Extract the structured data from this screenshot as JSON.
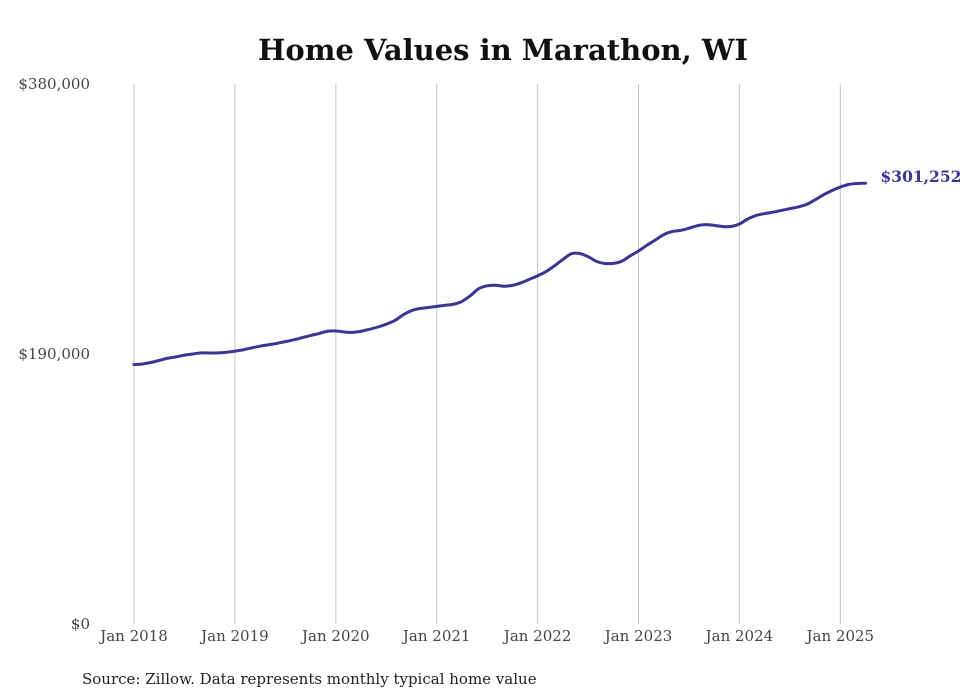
{
  "chart_data": {
    "type": "line",
    "title": "Home Values in Marathon, WI",
    "xlabel": "",
    "ylabel": "",
    "x_tick_labels": [
      "Jan 2018",
      "Jan 2019",
      "Jan 2020",
      "Jan 2021",
      "Jan 2022",
      "Jan 2023",
      "Jan 2024",
      "Jan 2025"
    ],
    "y_tick_labels": [
      "$0",
      "$190,000",
      "$380,000"
    ],
    "y_ticks": [
      0,
      190000,
      380000
    ],
    "ylim": [
      0,
      380000
    ],
    "xlim": [
      "2018-01",
      "2025-05"
    ],
    "grid": "vertical",
    "legend": "none",
    "line_color": "#3b3595",
    "end_label": "$301,252",
    "source": "Source: Zillow. Data represents monthly typical home value",
    "series": [
      {
        "points": [
          [
            "2018-01",
            182500
          ],
          [
            "2018-02",
            183000
          ],
          [
            "2018-03",
            184000
          ],
          [
            "2018-04",
            185500
          ],
          [
            "2018-05",
            187000
          ],
          [
            "2018-06",
            188000
          ],
          [
            "2018-07",
            189200
          ],
          [
            "2018-08",
            190000
          ],
          [
            "2018-09",
            190800
          ],
          [
            "2018-10",
            190700
          ],
          [
            "2018-11",
            190800
          ],
          [
            "2018-12",
            191200
          ],
          [
            "2019-01",
            192000
          ],
          [
            "2019-02",
            193000
          ],
          [
            "2019-03",
            194300
          ],
          [
            "2019-04",
            195500
          ],
          [
            "2019-05",
            196500
          ],
          [
            "2019-06",
            197500
          ],
          [
            "2019-07",
            198700
          ],
          [
            "2019-08",
            200000
          ],
          [
            "2019-09",
            201500
          ],
          [
            "2019-10",
            203000
          ],
          [
            "2019-11",
            204400
          ],
          [
            "2019-12",
            206000
          ],
          [
            "2020-01",
            206200
          ],
          [
            "2020-02",
            205500
          ],
          [
            "2020-03",
            205200
          ],
          [
            "2020-04",
            206000
          ],
          [
            "2020-05",
            207400
          ],
          [
            "2020-06",
            209000
          ],
          [
            "2020-07",
            211000
          ],
          [
            "2020-08",
            213500
          ],
          [
            "2020-09",
            217500
          ],
          [
            "2020-10",
            220500
          ],
          [
            "2020-11",
            222000
          ],
          [
            "2020-12",
            222700
          ],
          [
            "2021-01",
            223500
          ],
          [
            "2021-02",
            224300
          ],
          [
            "2021-03",
            225000
          ],
          [
            "2021-04",
            227000
          ],
          [
            "2021-05",
            231000
          ],
          [
            "2021-06",
            236000
          ],
          [
            "2021-07",
            238000
          ],
          [
            "2021-08",
            238400
          ],
          [
            "2021-09",
            237700
          ],
          [
            "2021-10",
            238300
          ],
          [
            "2021-11",
            240000
          ],
          [
            "2021-12",
            242500
          ],
          [
            "2022-01",
            245000
          ],
          [
            "2022-02",
            248000
          ],
          [
            "2022-03",
            252000
          ],
          [
            "2022-04",
            256500
          ],
          [
            "2022-05",
            260500
          ],
          [
            "2022-06",
            260700
          ],
          [
            "2022-07",
            258500
          ],
          [
            "2022-08",
            255200
          ],
          [
            "2022-09",
            253700
          ],
          [
            "2022-10",
            253800
          ],
          [
            "2022-11",
            255300
          ],
          [
            "2022-12",
            259000
          ],
          [
            "2023-01",
            262500
          ],
          [
            "2023-02",
            266500
          ],
          [
            "2023-03",
            270200
          ],
          [
            "2023-04",
            274000
          ],
          [
            "2023-05",
            276200
          ],
          [
            "2023-06",
            277000
          ],
          [
            "2023-07",
            278500
          ],
          [
            "2023-08",
            280300
          ],
          [
            "2023-09",
            281000
          ],
          [
            "2023-10",
            280500
          ],
          [
            "2023-11",
            279700
          ],
          [
            "2023-12",
            279700
          ],
          [
            "2024-01",
            281500
          ],
          [
            "2024-02",
            285000
          ],
          [
            "2024-03",
            287500
          ],
          [
            "2024-04",
            288800
          ],
          [
            "2024-05",
            289800
          ],
          [
            "2024-06",
            291000
          ],
          [
            "2024-07",
            292300
          ],
          [
            "2024-08",
            293500
          ],
          [
            "2024-09",
            295300
          ],
          [
            "2024-10",
            298500
          ],
          [
            "2024-11",
            302000
          ],
          [
            "2024-12",
            305000
          ],
          [
            "2025-01",
            307500
          ],
          [
            "2025-02",
            309300
          ],
          [
            "2025-03",
            310000
          ],
          [
            "2025-04",
            310200
          ],
          [
            "2025-05",
            301252
          ]
        ]
      }
    ]
  }
}
